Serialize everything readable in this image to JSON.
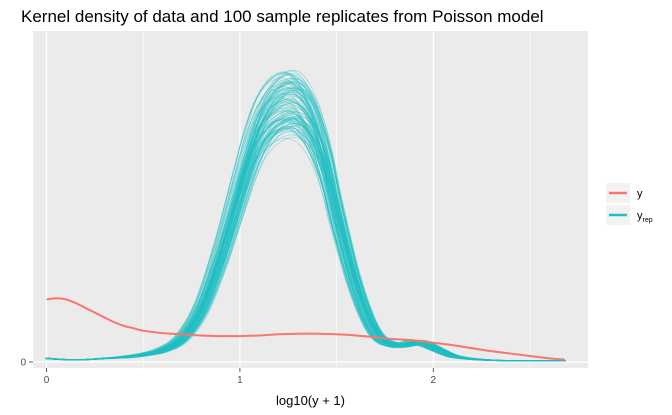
{
  "chart_data": {
    "type": "line",
    "title": "Kernel density of data and 100 sample replicates from Poisson model",
    "xlabel": "log10(y + 1)",
    "ylabel": "",
    "xlim": [
      -0.07,
      2.8
    ],
    "ylim": [
      -0.05,
      2.75
    ],
    "x_ticks": [
      0,
      1,
      2
    ],
    "x_tick_labels": [
      "0",
      "1",
      "2"
    ],
    "y_ticks": [
      0
    ],
    "y_tick_labels": [
      "0"
    ],
    "grid": true,
    "legend_position": "right",
    "legend": [
      {
        "key": "y",
        "label": "y",
        "sub": "",
        "color": "#F8766D"
      },
      {
        "key": "yrep",
        "label": "y",
        "sub": "rep",
        "color": "#1FBFC3"
      }
    ],
    "series": [
      {
        "name": "y",
        "color": "#F8766D",
        "x": [
          0,
          0.05,
          0.1,
          0.15,
          0.2,
          0.25,
          0.3,
          0.35,
          0.4,
          0.45,
          0.5,
          0.6,
          0.7,
          0.8,
          0.9,
          1.0,
          1.1,
          1.2,
          1.3,
          1.4,
          1.5,
          1.6,
          1.7,
          1.8,
          1.9,
          2.0,
          2.1,
          2.2,
          2.3,
          2.4,
          2.5,
          2.6,
          2.68
        ],
        "y": [
          0.52,
          0.53,
          0.52,
          0.49,
          0.45,
          0.41,
          0.37,
          0.33,
          0.3,
          0.28,
          0.26,
          0.24,
          0.23,
          0.22,
          0.215,
          0.215,
          0.22,
          0.23,
          0.235,
          0.235,
          0.23,
          0.22,
          0.205,
          0.19,
          0.18,
          0.16,
          0.14,
          0.115,
          0.09,
          0.07,
          0.05,
          0.03,
          0.02
        ]
      },
      {
        "name": "yrep",
        "color": "#1FBFC3",
        "x": [
          0,
          0.1,
          0.2,
          0.3,
          0.4,
          0.5,
          0.6,
          0.7,
          0.8,
          0.9,
          1.0,
          1.05,
          1.1,
          1.15,
          1.2,
          1.25,
          1.3,
          1.35,
          1.4,
          1.45,
          1.5,
          1.6,
          1.7,
          1.8,
          1.9,
          1.95,
          2.0,
          2.1,
          2.2,
          2.3,
          2.4,
          2.5,
          2.6,
          2.68
        ],
        "y": [
          0.03,
          0.02,
          0.02,
          0.03,
          0.04,
          0.06,
          0.1,
          0.2,
          0.45,
          0.9,
          1.45,
          1.72,
          1.93,
          2.06,
          2.13,
          2.16,
          2.13,
          2.03,
          1.85,
          1.58,
          1.22,
          0.62,
          0.24,
          0.14,
          0.16,
          0.155,
          0.12,
          0.05,
          0.025,
          0.015,
          0.01,
          0.01,
          0.01,
          0.01
        ]
      }
    ],
    "replicates": 100
  }
}
